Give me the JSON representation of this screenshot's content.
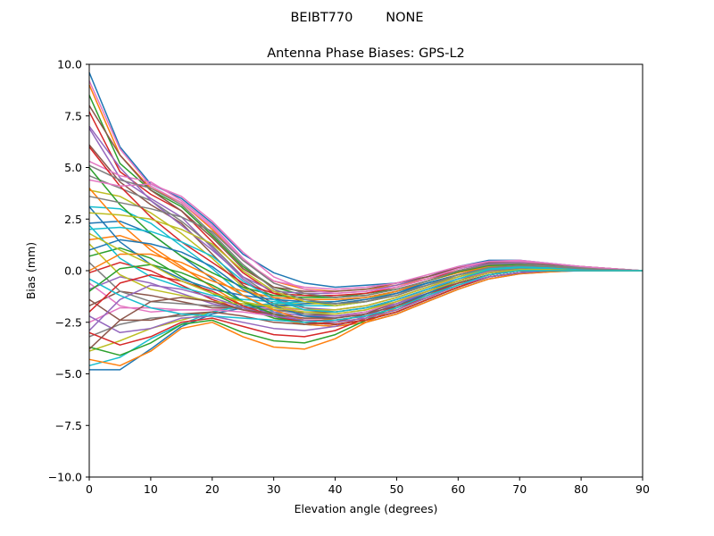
{
  "figure": {
    "suptitle": "BEIBT770        NONE"
  },
  "chart_data": {
    "type": "line",
    "title": "Antenna Phase Biases: GPS-L2",
    "xlabel": "Elevation angle (degrees)",
    "ylabel": "Bias (mm)",
    "xlim": [
      0,
      90
    ],
    "ylim": [
      -10,
      10
    ],
    "xticks": [
      0,
      10,
      20,
      30,
      40,
      50,
      60,
      70,
      80,
      90
    ],
    "xtick_labels": [
      "0",
      "10",
      "20",
      "30",
      "40",
      "50",
      "60",
      "70",
      "80",
      "90"
    ],
    "yticks": [
      -10,
      -7.5,
      -5,
      -2.5,
      0,
      2.5,
      5,
      7.5,
      10
    ],
    "ytick_labels": [
      "−10.0",
      "−7.5",
      "−5.0",
      "−2.5",
      "0.0",
      "2.5",
      "5.0",
      "7.5",
      "10.0"
    ],
    "grid": false,
    "legend": "none",
    "colors": [
      "#1f77b4",
      "#ff7f0e",
      "#2ca02c",
      "#d62728",
      "#9467bd",
      "#8c564b",
      "#e377c2",
      "#7f7f7f",
      "#bcbd22",
      "#17becf"
    ],
    "x": [
      0,
      5,
      10,
      15,
      20,
      25,
      30,
      35,
      40,
      45,
      50,
      55,
      60,
      65,
      70,
      75,
      80,
      85,
      90
    ],
    "series": [
      {
        "values": [
          9.6,
          6.0,
          4.2,
          3.5,
          2.3,
          0.8,
          -0.1,
          -0.6,
          -0.8,
          -0.7,
          -0.6,
          -0.3,
          0.2,
          0.5,
          0.5,
          0.35,
          0.2,
          0.1,
          0.0
        ]
      },
      {
        "values": [
          9.0,
          5.6,
          4.0,
          3.3,
          2.0,
          0.5,
          -0.5,
          -0.9,
          -1.0,
          -0.9,
          -0.7,
          -0.4,
          0.1,
          0.4,
          0.4,
          0.3,
          0.2,
          0.1,
          0.0
        ]
      },
      {
        "values": [
          8.5,
          5.2,
          3.9,
          3.1,
          1.7,
          0.2,
          -0.8,
          -1.2,
          -1.3,
          -1.1,
          -0.9,
          -0.5,
          0.0,
          0.3,
          0.35,
          0.25,
          0.15,
          0.05,
          0.0
        ]
      },
      {
        "values": [
          7.7,
          4.8,
          3.7,
          2.9,
          1.4,
          -0.1,
          -1.1,
          -1.5,
          -1.6,
          -1.4,
          -1.1,
          -0.7,
          -0.2,
          0.2,
          0.3,
          0.2,
          0.1,
          0.05,
          0.0
        ]
      },
      {
        "values": [
          6.9,
          4.5,
          3.5,
          2.6,
          1.1,
          -0.4,
          -1.4,
          -1.8,
          -1.9,
          -1.7,
          -1.3,
          -0.8,
          -0.3,
          0.1,
          0.2,
          0.15,
          0.1,
          0.05,
          0.0
        ]
      },
      {
        "values": [
          6.1,
          4.3,
          3.2,
          2.3,
          0.8,
          -0.7,
          -1.6,
          -2.1,
          -2.2,
          -2.0,
          -1.6,
          -1.0,
          -0.5,
          0.0,
          0.15,
          0.1,
          0.05,
          0.0,
          0.0
        ]
      },
      {
        "values": [
          5.3,
          4.6,
          4.3,
          3.4,
          2.2,
          0.6,
          -0.6,
          -1.1,
          -1.3,
          -1.2,
          -0.9,
          -0.5,
          0.0,
          0.3,
          0.35,
          0.25,
          0.15,
          0.05,
          0.0
        ]
      },
      {
        "values": [
          4.6,
          4.0,
          3.4,
          2.4,
          1.2,
          -0.3,
          -1.3,
          -1.8,
          -2.0,
          -1.8,
          -1.4,
          -0.9,
          -0.4,
          0.0,
          0.1,
          0.1,
          0.05,
          0.0,
          0.0
        ]
      },
      {
        "values": [
          3.9,
          3.6,
          2.8,
          1.8,
          0.6,
          -0.8,
          -1.7,
          -2.2,
          -2.4,
          -2.2,
          -1.8,
          -1.2,
          -0.6,
          -0.2,
          0.0,
          0.05,
          0.0,
          0.0,
          0.0
        ]
      },
      {
        "values": [
          3.1,
          3.0,
          2.3,
          1.2,
          0.1,
          -1.2,
          -2.0,
          -2.5,
          -2.6,
          -2.4,
          -2.0,
          -1.4,
          -0.8,
          -0.3,
          -0.1,
          0.0,
          0.0,
          0.0,
          0.0
        ]
      },
      {
        "values": [
          2.3,
          2.4,
          1.8,
          0.7,
          -0.4,
          -1.5,
          -2.2,
          -2.6,
          -2.7,
          -2.5,
          -2.1,
          -1.5,
          -0.9,
          -0.4,
          -0.15,
          -0.05,
          0.0,
          0.0,
          0.0
        ]
      },
      {
        "values": [
          1.5,
          1.7,
          1.2,
          0.2,
          -0.8,
          -1.7,
          -2.3,
          -2.6,
          -2.7,
          -2.5,
          -2.1,
          -1.5,
          -0.9,
          -0.4,
          -0.15,
          -0.05,
          0.0,
          0.0,
          0.0
        ]
      },
      {
        "values": [
          0.7,
          1.1,
          0.6,
          -0.3,
          -1.1,
          -1.8,
          -2.3,
          -2.5,
          -2.6,
          -2.4,
          -2.0,
          -1.4,
          -0.8,
          -0.3,
          -0.1,
          0.0,
          0.0,
          0.0,
          0.0
        ]
      },
      {
        "values": [
          -0.1,
          0.4,
          0.0,
          -0.7,
          -1.4,
          -1.9,
          -2.2,
          -2.4,
          -2.4,
          -2.2,
          -1.8,
          -1.3,
          -0.7,
          -0.3,
          -0.1,
          0.0,
          0.0,
          0.0,
          0.0
        ]
      },
      {
        "values": [
          -0.9,
          -0.3,
          -0.6,
          -1.1,
          -1.6,
          -1.9,
          -2.0,
          -2.2,
          -2.2,
          -2.0,
          -1.6,
          -1.1,
          -0.6,
          -0.2,
          0.0,
          0.0,
          0.0,
          0.0,
          0.0
        ]
      },
      {
        "values": [
          -1.7,
          -1.0,
          -1.2,
          -1.5,
          -1.8,
          -1.8,
          -1.9,
          -2.0,
          -2.0,
          -1.8,
          -1.4,
          -0.9,
          -0.5,
          -0.1,
          0.0,
          0.05,
          0.0,
          0.0,
          0.0
        ]
      },
      {
        "values": [
          -2.5,
          -1.8,
          -1.8,
          -1.9,
          -1.9,
          -1.8,
          -1.8,
          -1.9,
          -1.9,
          -1.7,
          -1.3,
          -0.8,
          -0.4,
          0.0,
          0.1,
          0.05,
          0.0,
          0.0,
          0.0
        ]
      },
      {
        "values": [
          -3.2,
          -2.6,
          -2.3,
          -2.2,
          -2.0,
          -1.7,
          -1.7,
          -1.7,
          -1.7,
          -1.5,
          -1.1,
          -0.7,
          -0.3,
          0.05,
          0.15,
          0.1,
          0.05,
          0.0,
          0.0
        ]
      },
      {
        "values": [
          -3.9,
          -3.4,
          -2.8,
          -2.4,
          -2.0,
          -1.7,
          -1.6,
          -1.6,
          -1.6,
          -1.4,
          -1.0,
          -0.6,
          -0.2,
          0.1,
          0.2,
          0.15,
          0.1,
          0.05,
          0.0
        ]
      },
      {
        "values": [
          -4.6,
          -4.2,
          -3.3,
          -2.6,
          -2.0,
          -1.7,
          -1.6,
          -1.5,
          -1.5,
          -1.3,
          -1.0,
          -0.6,
          -0.2,
          0.1,
          0.2,
          0.15,
          0.1,
          0.05,
          0.0
        ]
      },
      {
        "values": [
          -4.8,
          -4.8,
          -3.8,
          -2.7,
          -2.1,
          -1.8,
          -1.7,
          -1.6,
          -1.5,
          -1.3,
          -1.0,
          -0.6,
          -0.2,
          0.1,
          0.2,
          0.15,
          0.1,
          0.05,
          0.0
        ]
      },
      {
        "values": [
          -4.3,
          -4.6,
          -3.9,
          -2.8,
          -2.5,
          -3.2,
          -3.7,
          -3.8,
          -3.3,
          -2.5,
          -1.8,
          -1.1,
          -0.6,
          -0.2,
          0.0,
          0.0,
          0.0,
          0.0,
          0.0
        ]
      },
      {
        "values": [
          -3.7,
          -4.1,
          -3.5,
          -2.6,
          -2.4,
          -3.0,
          -3.4,
          -3.5,
          -3.1,
          -2.4,
          -1.7,
          -1.1,
          -0.6,
          -0.2,
          0.0,
          0.0,
          0.0,
          0.0,
          0.0
        ]
      },
      {
        "values": [
          -3.0,
          -3.6,
          -3.2,
          -2.5,
          -2.3,
          -2.7,
          -3.1,
          -3.2,
          -2.9,
          -2.3,
          -1.7,
          -1.1,
          -0.6,
          -0.2,
          0.0,
          0.0,
          0.0,
          0.0,
          0.0
        ]
      },
      {
        "values": [
          -2.2,
          -3.0,
          -2.8,
          -2.3,
          -2.2,
          -2.5,
          -2.8,
          -2.9,
          -2.7,
          -2.2,
          -1.6,
          -1.0,
          -0.5,
          -0.1,
          0.0,
          0.0,
          0.0,
          0.0,
          0.0
        ]
      },
      {
        "values": [
          -1.4,
          -2.4,
          -2.4,
          -2.1,
          -2.0,
          -2.2,
          -2.5,
          -2.6,
          -2.5,
          -2.1,
          -1.5,
          -1.0,
          -0.5,
          -0.1,
          0.05,
          0.0,
          0.0,
          0.0,
          0.0
        ]
      },
      {
        "values": [
          -0.6,
          -1.7,
          -2.0,
          -1.9,
          -1.9,
          -2.0,
          -2.2,
          -2.3,
          -2.3,
          -2.0,
          -1.5,
          -0.9,
          -0.4,
          -0.05,
          0.1,
          0.05,
          0.0,
          0.0,
          0.0
        ]
      },
      {
        "values": [
          0.4,
          -1.0,
          -1.5,
          -1.6,
          -1.7,
          -1.8,
          -1.9,
          -2.1,
          -2.1,
          -1.9,
          -1.4,
          -0.9,
          -0.4,
          0.0,
          0.1,
          0.05,
          0.0,
          0.0,
          0.0
        ]
      },
      {
        "values": [
          1.3,
          -0.2,
          -0.9,
          -1.2,
          -1.5,
          -1.6,
          -1.7,
          -1.9,
          -1.9,
          -1.7,
          -1.3,
          -0.8,
          -0.3,
          0.05,
          0.15,
          0.1,
          0.05,
          0.0,
          0.0
        ]
      },
      {
        "values": [
          2.2,
          0.6,
          -0.3,
          -0.8,
          -1.2,
          -1.4,
          -1.5,
          -1.7,
          -1.7,
          -1.5,
          -1.2,
          -0.7,
          -0.2,
          0.1,
          0.2,
          0.15,
          0.1,
          0.05,
          0.0
        ]
      },
      {
        "values": [
          3.1,
          1.4,
          0.3,
          -0.4,
          -0.9,
          -1.2,
          -1.4,
          -1.5,
          -1.6,
          -1.4,
          -1.1,
          -0.6,
          -0.2,
          0.15,
          0.25,
          0.2,
          0.1,
          0.05,
          0.0
        ]
      },
      {
        "values": [
          4.0,
          2.3,
          1.0,
          0.1,
          -0.5,
          -1.0,
          -1.3,
          -1.4,
          -1.4,
          -1.3,
          -1.0,
          -0.5,
          -0.1,
          0.2,
          0.3,
          0.2,
          0.1,
          0.05,
          0.0
        ]
      },
      {
        "values": [
          5.0,
          3.2,
          1.8,
          0.7,
          -0.1,
          -0.8,
          -1.2,
          -1.3,
          -1.3,
          -1.2,
          -0.9,
          -0.5,
          -0.05,
          0.25,
          0.3,
          0.25,
          0.15,
          0.05,
          0.0
        ]
      },
      {
        "values": [
          6.0,
          4.1,
          2.6,
          1.4,
          0.4,
          -0.6,
          -1.1,
          -1.2,
          -1.2,
          -1.1,
          -0.8,
          -0.4,
          0.0,
          0.3,
          0.35,
          0.25,
          0.15,
          0.05,
          0.0
        ]
      },
      {
        "values": [
          7.0,
          5.0,
          3.4,
          2.2,
          1.0,
          -0.3,
          -1.0,
          -1.1,
          -1.1,
          -1.0,
          -0.7,
          -0.3,
          0.1,
          0.35,
          0.4,
          0.3,
          0.15,
          0.05,
          0.0
        ]
      },
      {
        "values": [
          8.0,
          5.6,
          3.9,
          2.9,
          1.6,
          0.1,
          -0.8,
          -1.0,
          -1.0,
          -0.9,
          -0.6,
          -0.3,
          0.15,
          0.4,
          0.45,
          0.3,
          0.2,
          0.1,
          0.0
        ]
      },
      {
        "values": [
          9.2,
          5.9,
          4.1,
          3.3,
          2.1,
          0.5,
          -0.5,
          -0.8,
          -0.9,
          -0.8,
          -0.6,
          -0.2,
          0.2,
          0.45,
          0.45,
          0.35,
          0.2,
          0.1,
          0.0
        ]
      },
      {
        "values": [
          3.6,
          3.3,
          3.0,
          2.6,
          1.9,
          0.5,
          -0.6,
          -1.1,
          -1.3,
          -1.2,
          -0.9,
          -0.5,
          0.0,
          0.3,
          0.35,
          0.25,
          0.15,
          0.05,
          0.0
        ]
      },
      {
        "values": [
          2.8,
          2.7,
          2.5,
          2.0,
          1.3,
          0.0,
          -1.0,
          -1.5,
          -1.7,
          -1.5,
          -1.2,
          -0.7,
          -0.2,
          0.15,
          0.25,
          0.2,
          0.1,
          0.05,
          0.0
        ]
      },
      {
        "values": [
          2.0,
          2.1,
          1.9,
          1.4,
          0.7,
          -0.5,
          -1.4,
          -1.9,
          -2.0,
          -1.8,
          -1.4,
          -0.9,
          -0.4,
          0.05,
          0.15,
          0.1,
          0.05,
          0.0,
          0.0
        ]
      },
      {
        "values": [
          1.0,
          1.5,
          1.3,
          0.9,
          0.2,
          -0.9,
          -1.7,
          -2.2,
          -2.3,
          -2.1,
          -1.7,
          -1.1,
          -0.5,
          -0.1,
          0.05,
          0.05,
          0.0,
          0.0,
          0.0
        ]
      },
      {
        "values": [
          0.0,
          0.8,
          0.8,
          0.4,
          -0.3,
          -1.2,
          -1.9,
          -2.4,
          -2.5,
          -2.3,
          -1.9,
          -1.3,
          -0.7,
          -0.2,
          0.0,
          0.0,
          0.0,
          0.0,
          0.0
        ]
      },
      {
        "values": [
          -1.0,
          0.1,
          0.3,
          -0.1,
          -0.7,
          -1.5,
          -2.1,
          -2.5,
          -2.6,
          -2.4,
          -2.0,
          -1.4,
          -0.8,
          -0.3,
          -0.1,
          0.0,
          0.0,
          0.0,
          0.0
        ]
      },
      {
        "values": [
          -2.0,
          -0.6,
          -0.2,
          -0.5,
          -1.0,
          -1.7,
          -2.2,
          -2.5,
          -2.6,
          -2.4,
          -2.0,
          -1.4,
          -0.8,
          -0.3,
          -0.1,
          0.0,
          0.0,
          0.0,
          0.0
        ]
      },
      {
        "values": [
          -2.9,
          -1.4,
          -0.7,
          -0.9,
          -1.3,
          -1.8,
          -2.2,
          -2.4,
          -2.5,
          -2.3,
          -1.9,
          -1.3,
          -0.7,
          -0.3,
          -0.1,
          0.0,
          0.0,
          0.0,
          0.0
        ]
      },
      {
        "values": [
          -3.8,
          -2.4,
          -1.5,
          -1.3,
          -1.5,
          -1.9,
          -2.1,
          -2.3,
          -2.3,
          -2.1,
          -1.7,
          -1.2,
          -0.6,
          -0.2,
          0.0,
          0.0,
          0.0,
          0.0,
          0.0
        ]
      },
      {
        "values": [
          4.4,
          4.1,
          4.2,
          3.6,
          2.4,
          0.9,
          -0.3,
          -0.9,
          -1.1,
          -1.0,
          -0.8,
          -0.4,
          0.1,
          0.45,
          0.5,
          0.35,
          0.2,
          0.1,
          0.0
        ]
      },
      {
        "values": [
          5.1,
          4.4,
          4.0,
          3.2,
          1.8,
          0.3,
          -0.9,
          -1.4,
          -1.6,
          -1.5,
          -1.2,
          -0.7,
          -0.2,
          0.15,
          0.25,
          0.2,
          0.1,
          0.05,
          0.0
        ]
      },
      {
        "values": [
          1.8,
          1.0,
          0.3,
          -0.5,
          -1.1,
          -1.5,
          -1.8,
          -2.0,
          -2.1,
          -1.9,
          -1.5,
          -1.0,
          -0.5,
          -0.1,
          0.05,
          0.05,
          0.0,
          0.0,
          0.0
        ]
      },
      {
        "values": [
          -0.4,
          -1.2,
          -1.8,
          -2.1,
          -2.2,
          -2.3,
          -2.4,
          -2.5,
          -2.4,
          -2.2,
          -1.8,
          -1.2,
          -0.7,
          -0.2,
          0.0,
          0.0,
          0.0,
          0.0,
          0.0
        ]
      }
    ]
  }
}
